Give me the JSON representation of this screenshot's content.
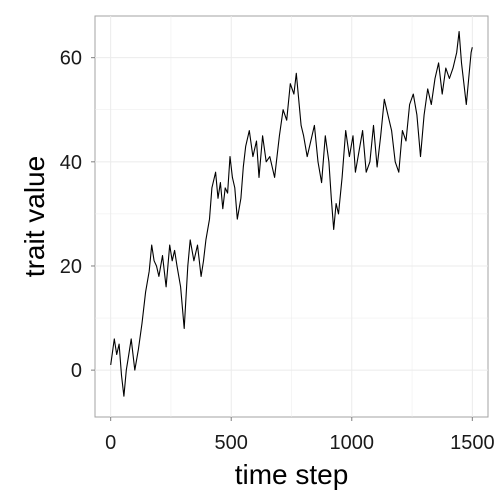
{
  "chart_data": {
    "type": "line",
    "xlabel": "time step",
    "ylabel": "trait value",
    "xlim": [
      -65,
      1565
    ],
    "ylim": [
      -9,
      68
    ],
    "x_ticks": [
      0,
      500,
      1000,
      1500
    ],
    "y_ticks": [
      0,
      20,
      40,
      60
    ],
    "x_tick_labels": [
      "0",
      "500",
      "1000",
      "1500"
    ],
    "y_tick_labels": [
      "0",
      "20",
      "40",
      "60"
    ],
    "grid": true,
    "legend": "none",
    "colors": {
      "line": "#000000",
      "grid": "#ebebeb",
      "panel_border": "#a3a3a3"
    },
    "series": [
      {
        "x": [
          0,
          15,
          25,
          35,
          45,
          55,
          65,
          75,
          85,
          100,
          115,
          130,
          145,
          160,
          170,
          180,
          190,
          200,
          215,
          230,
          245,
          255,
          265,
          275,
          290,
          305,
          320,
          330,
          345,
          360,
          375,
          385,
          395,
          410,
          420,
          435,
          445,
          455,
          465,
          475,
          485,
          495,
          505,
          515,
          525,
          540,
          550,
          560,
          575,
          590,
          605,
          615,
          630,
          645,
          660,
          680,
          700,
          715,
          730,
          745,
          760,
          770,
          780,
          790,
          800,
          815,
          830,
          845,
          860,
          875,
          890,
          905,
          915,
          925,
          935,
          945,
          960,
          975,
          990,
          1005,
          1015,
          1030,
          1045,
          1060,
          1075,
          1090,
          1105,
          1120,
          1135,
          1150,
          1165,
          1180,
          1195,
          1210,
          1225,
          1240,
          1255,
          1270,
          1285,
          1300,
          1315,
          1330,
          1345,
          1360,
          1375,
          1390,
          1405,
          1420,
          1435,
          1445,
          1455,
          1465,
          1475,
          1485,
          1495,
          1500
        ],
        "y": [
          1,
          6,
          3,
          5,
          -1,
          -5,
          0,
          3,
          6,
          0,
          4,
          9,
          15,
          19,
          24,
          21,
          20,
          18,
          22,
          16,
          24,
          21,
          23,
          20,
          16,
          8,
          20,
          25,
          21,
          24,
          18,
          21,
          25,
          29,
          35,
          38,
          33,
          36,
          31,
          35,
          34,
          41,
          37,
          35,
          29,
          33,
          39,
          43,
          46,
          41,
          44,
          37,
          45,
          40,
          41,
          37,
          45,
          50,
          48,
          55,
          53,
          57,
          52,
          47,
          45,
          41,
          44,
          47,
          40,
          36,
          45,
          40,
          33,
          27,
          32,
          30,
          37,
          46,
          41,
          45,
          38,
          42,
          46,
          38,
          40,
          47,
          39,
          45,
          52,
          49,
          46,
          40,
          38,
          46,
          44,
          51,
          53,
          49,
          41,
          49,
          54,
          51,
          56,
          59,
          53,
          58,
          56,
          58,
          61,
          65,
          59,
          55,
          51,
          56,
          61,
          62
        ]
      }
    ]
  }
}
